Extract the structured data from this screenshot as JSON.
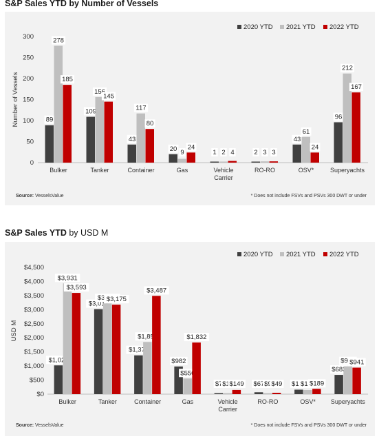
{
  "chart_data": [
    {
      "type": "bar",
      "title_bold": "S&P Sales YTD",
      "title_rest": " by Number of Vessels",
      "ylabel": "Number of Vessels",
      "xlabel": "",
      "ylim": [
        0,
        300
      ],
      "yticks": [
        "0",
        "50",
        "100",
        "150",
        "200",
        "250",
        "300"
      ],
      "grid": false,
      "legend": "top-right",
      "categories": [
        [
          "Bulker"
        ],
        [
          "Tanker"
        ],
        [
          "Container"
        ],
        [
          "Gas"
        ],
        [
          "Vehicle",
          "Carrier"
        ],
        [
          "RO-RO"
        ],
        [
          "OSV*"
        ],
        [
          "Superyachts"
        ]
      ],
      "series": [
        {
          "name": "2020 YTD",
          "color": "#404040",
          "values": [
            89,
            109,
            43,
            20,
            1,
            2,
            43,
            96
          ],
          "labels": [
            "89",
            "109",
            "43",
            "20",
            "1",
            "2",
            "43",
            "96"
          ]
        },
        {
          "name": "2021 YTD",
          "color": "#bfbfbf",
          "values": [
            278,
            156,
            117,
            9,
            2,
            3,
            61,
            212
          ],
          "labels": [
            "278",
            "156",
            "117",
            "9",
            "2",
            "3",
            "61",
            "212"
          ]
        },
        {
          "name": "2022 YTD",
          "color": "#c00000",
          "values": [
            185,
            145,
            80,
            24,
            4,
            3,
            24,
            167
          ],
          "labels": [
            "185",
            "145",
            "80",
            "24",
            "4",
            "3",
            "24",
            "167"
          ]
        }
      ],
      "source_label": "Source:",
      "source_value": " VesselsValue",
      "footnote": "* Does not include FSVs and PSVs 300 DWT or under"
    },
    {
      "type": "bar",
      "title_bold": "S&P Sales YTD",
      "title_rest": " by USD M",
      "ylabel": "USD M",
      "xlabel": "",
      "ylim": [
        0,
        4500
      ],
      "yticks": [
        "$0",
        "$500",
        "$1,000",
        "$1,500",
        "$2,000",
        "$2,500",
        "$3,000",
        "$3,500",
        "$4,000",
        "$4,500"
      ],
      "grid": false,
      "legend": "top-right",
      "categories": [
        [
          "Bulker"
        ],
        [
          "Tanker"
        ],
        [
          "Container"
        ],
        [
          "Gas"
        ],
        [
          "Vehicle",
          "Carrier"
        ],
        [
          "RO-RO"
        ],
        [
          "OSV*"
        ],
        [
          "Superyachts"
        ]
      ],
      "series": [
        {
          "name": "2020 YTD",
          "color": "#404040",
          "values": [
            1021,
            3017,
            1377,
            982,
            7,
            67,
            159,
            683
          ],
          "labels": [
            "$1,021",
            "$3,017",
            "$1,377",
            "$982",
            "$7",
            "$67",
            "$159",
            "$683"
          ]
        },
        {
          "name": "2021 YTD",
          "color": "#bfbfbf",
          "values": [
            3931,
            3223,
            1852,
            556,
            17,
            9,
            147,
            987
          ],
          "labels": [
            "$3,931",
            "$3,223",
            "$1,852",
            "$556",
            "$17",
            "$9",
            "$147",
            "$987"
          ]
        },
        {
          "name": "2022 YTD",
          "color": "#c00000",
          "values": [
            3593,
            3175,
            3487,
            1832,
            149,
            49,
            189,
            941
          ],
          "labels": [
            "$3,593",
            "$3,175",
            "$3,487",
            "$1,832",
            "$149",
            "$49",
            "$189",
            "$941"
          ]
        }
      ],
      "source_label": "Source:",
      "source_value": " VesselsValue",
      "footnote": "* Does not include FSVs and PSVs 300 DWT or under"
    }
  ]
}
